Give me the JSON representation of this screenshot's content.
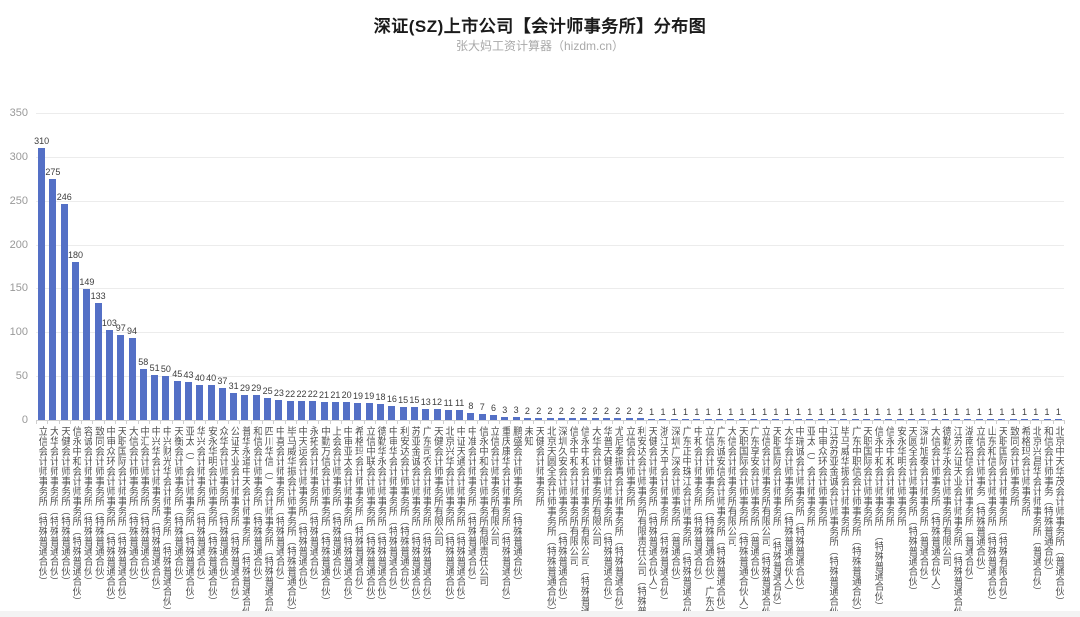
{
  "title": "深证(SZ)上市公司【会计师事务所】分布图",
  "subtitle": "张大妈工资计算器（hizdm.cn）",
  "chart_data": {
    "type": "bar",
    "title": "深证(SZ)上市公司【会计师事务所】分布图",
    "subtitle": "张大妈工资计算器（hizdm.cn）",
    "xlabel": "",
    "ylabel": "",
    "ylim": [
      0,
      350
    ],
    "yticks": [
      0,
      50,
      100,
      150,
      200,
      250,
      300,
      350
    ],
    "grid": true,
    "legend": false,
    "bar_color": "#5470c6",
    "value_labels": true,
    "categories": [
      "立信会计师事务所（特殊普通合伙）",
      "大华会计师事务所（特殊普通合伙）",
      "天健会计师事务所（特殊普通合伙）",
      "信永中和会计师事务所（特殊普通合伙）",
      "容诚会计师事务所（特殊普通合伙）",
      "致同会计师事务所（特殊普通合伙）",
      "中审众环会计师事务所（特殊普通合伙）",
      "天职国际会计师事务所（特殊普通合伙）",
      "大信会计师事务所（特殊普通合伙）",
      "中汇会计师事务所（特殊普通合伙）",
      "中兴华会计师事务所（特殊普通合伙）",
      "中兴财光华会计师事务所（特殊普通合伙）",
      "天衡会计师事务所（特殊普通合伙）",
      "亚太（）会计师事务所（特殊普通合伙）",
      "华兴会计师事务所（特殊普通合伙）",
      "安永华明会计师事务所（特殊普通合伙）",
      "众华会计师事务所（特殊普通合伙）",
      "公证天业会计师事务所（特殊普通合伙）",
      "普华永道中天会计师事务所（特殊普通合伙）",
      "和信会计师事务所（特殊普通合伙）",
      "四川华信（）会计师事务所（特殊普通合伙）",
      "中喜会计师事务所（特殊普通合伙）",
      "毕马威华振会计师事务所（特殊普通合伙）",
      "中天运会计师事务所（特殊普通合伙）",
      "永拓会计师事务所（特殊普通合伙）",
      "中勤万信会计师事务所（特殊普通合伙）",
      "上会会计师事务所（特殊普通合伙）",
      "中审亚太会计师事务所（特殊普通合伙）",
      "希格玛会计师事务所（特殊普通合伙）",
      "立信中联会计师事务所（特殊普通合伙）",
      "德勤华永会计师事务所（特殊普通合伙）",
      "中审华会计师事务所（特殊普通合伙）",
      "利安达会计师事务所（特殊普通合伙）",
      "苏亚金诚会计师事务所（特殊普通合伙）",
      "广东司农会计师事务所（特殊普通合伙）",
      "天健会计师事务所有限公司",
      "北京兴华会计师事务所（特殊普通合伙）",
      "中证天通会计师事务所（特殊普通合伙）",
      "中准会计师事务所（特殊普通合伙）",
      "信永中和会计师事务所有限责任公司",
      "立信会计师事务所有限公司",
      "重庆康华会计师事务所（特殊普通合伙）",
      "鹏盛会计师事务所（特殊普通合伙）",
      "未知",
      "天健会计师事务所",
      "北京天圆全会计师事务所（特殊普通合伙）",
      "深圳久安会计师事务所（特殊普通合伙）",
      "信永中和会计师事务所有限公司",
      "信永中和会计师事务所有限公司（特殊普通合伙）",
      "大华会计师事务所有限公司",
      "华普天健会计师事务所（特殊普通合伙）",
      "尤尼泰振青会计师事务所（特殊普通合伙）",
      "立信会计师事务所",
      "利安达会计师事务所有限责任公司（特殊普通合伙）",
      "天健会计师事务所（特殊普通合伙人）",
      "浙江天平会计师事务所（特殊普通合伙）",
      "深圳广深会计师事务所（普通合伙）",
      "广东正中珠江会计师事务所（特殊普通合伙）",
      "中和会计师事务所（特殊普通合伙）",
      "立信会计师事务所（特殊普通合伙）广东分所",
      "广东诚安信会计师事务所（特殊普通合伙）",
      "大信会计师事务所有限公司",
      "天职国际会计师事务所（特殊普通合伙人）",
      "广东享安会计师事务所（普通合伙）",
      "立信会计师事务所有限公司（特殊普通合伙）",
      "天职国际会计师事务所　（特殊普通合伙）",
      "大华会计师事务所（特殊普通合伙人）",
      "中瑞诚会计师事务所（特殊普通合伙）",
      "亚太（）会计师事务所",
      "中审众环会计师事务所",
      "江苏苏亚金诚会计师事务所（特殊普通合伙）",
      "毕马威华振会计师事务所",
      "广东中职信会计师事务所（特殊普通合伙）",
      "天职国际会计师事务所",
      "信永中和会计师事务所　（特殊普通合伙）",
      "信永中和会计师事务所",
      "安永华明会计师事务所",
      "天圆全会计师事务所（特殊普通合伙）",
      "深圳旭泰会计师事务所（普通合伙）",
      "大信会计师事务所（特殊普通合伙人）",
      "德勤华永会计师事务所有限公司",
      "江苏公证天业会计师事务所（特殊普通合伙）",
      "湖南容信会计师事务所（普通合伙）",
      "立信会计师事务（特殊普通合伙）",
      "山东和信会计师事务所（特殊普通合伙）",
      "天职国际会计师事务所（特殊有限合伙）",
      "致同会计师事务所",
      "希格玛会计师事务所",
      "北京兴昌华会计师事务所（普通合伙）",
      "和信会计师事务（特殊普通合伙）",
      "北京中天华茂会计师事务所（普通合伙）"
    ],
    "values": [
      310,
      275,
      246,
      180,
      149,
      133,
      103,
      97,
      94,
      58,
      51,
      50,
      45,
      43,
      40,
      40,
      37,
      31,
      29,
      29,
      25,
      23,
      22,
      22,
      22,
      21,
      21,
      20,
      19,
      19,
      18,
      16,
      15,
      15,
      13,
      12,
      11,
      11,
      8,
      7,
      6,
      3,
      3,
      2,
      2,
      2,
      2,
      2,
      2,
      2,
      2,
      2,
      2,
      2,
      1,
      1,
      1,
      1,
      1,
      1,
      1,
      1,
      1,
      1,
      1,
      1,
      1,
      1,
      1,
      1,
      1,
      1,
      1,
      1,
      1,
      1,
      1,
      1,
      1,
      1,
      1,
      1,
      1,
      1,
      1,
      1,
      1,
      1,
      1,
      1,
      1
    ]
  }
}
